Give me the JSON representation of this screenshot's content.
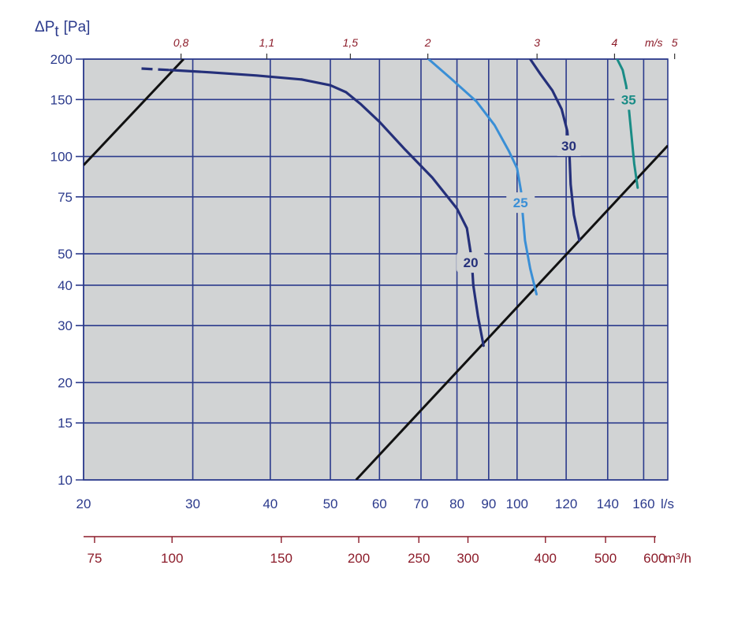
{
  "chart_data": {
    "type": "line",
    "ylabel": "ΔP",
    "ylabel_sub": "t",
    "ylabel_unit": "[Pa]",
    "x_unit": "l/s",
    "x2_unit": "m³/h",
    "top_unit": "m/s",
    "xlim": [
      20,
      175
    ],
    "ylim": [
      10,
      200
    ],
    "x_scale": "log",
    "y_scale": "log",
    "grid": true,
    "plot_bg": "#d1d3d4",
    "grid_color": "#2b3a8c",
    "x_ticks": [
      {
        "v": 20,
        "label": "20"
      },
      {
        "v": 30,
        "label": "30"
      },
      {
        "v": 40,
        "label": "40"
      },
      {
        "v": 50,
        "label": "50"
      },
      {
        "v": 60,
        "label": "60"
      },
      {
        "v": 70,
        "label": "70"
      },
      {
        "v": 80,
        "label": "80"
      },
      {
        "v": 90,
        "label": "90"
      },
      {
        "v": 100,
        "label": "100"
      },
      {
        "v": 120,
        "label": "120"
      },
      {
        "v": 140,
        "label": "140"
      },
      {
        "v": 160,
        "label": "160"
      }
    ],
    "y_ticks": [
      {
        "v": 10,
        "label": "10"
      },
      {
        "v": 15,
        "label": "15"
      },
      {
        "v": 20,
        "label": "20"
      },
      {
        "v": 30,
        "label": "30"
      },
      {
        "v": 40,
        "label": "40"
      },
      {
        "v": 50,
        "label": "50"
      },
      {
        "v": 75,
        "label": "75"
      },
      {
        "v": 100,
        "label": "100"
      },
      {
        "v": 150,
        "label": "150"
      },
      {
        "v": 200,
        "label": "200"
      }
    ],
    "x2_ticks": [
      {
        "v": 75,
        "label": "75"
      },
      {
        "v": 100,
        "label": "100"
      },
      {
        "v": 150,
        "label": "150"
      },
      {
        "v": 200,
        "label": "200"
      },
      {
        "v": 250,
        "label": "250"
      },
      {
        "v": 300,
        "label": "300"
      },
      {
        "v": 400,
        "label": "400"
      },
      {
        "v": 500,
        "label": "500"
      },
      {
        "v": 600,
        "label": "600"
      }
    ],
    "top_ticks": [
      {
        "v": 0.8,
        "label": "0,8"
      },
      {
        "v": 1.1,
        "label": "1,1"
      },
      {
        "v": 1.5,
        "label": "1,5"
      },
      {
        "v": 2,
        "label": "2"
      },
      {
        "v": 3,
        "label": "3"
      },
      {
        "v": 4,
        "label": "4"
      },
      {
        "v": 5,
        "label": "5"
      }
    ],
    "top_axis_ls_per_ms": 35.9,
    "series": [
      {
        "name": "20",
        "color": "#25307a",
        "width": 3.2,
        "dashed_points": [
          [
            24.8,
            187
          ],
          [
            27.6,
            185
          ]
        ],
        "points": [
          [
            27.6,
            185
          ],
          [
            32,
            182
          ],
          [
            38,
            178
          ],
          [
            45,
            173
          ],
          [
            50,
            166
          ],
          [
            53,
            158
          ],
          [
            56,
            145
          ],
          [
            60,
            128
          ],
          [
            66,
            105
          ],
          [
            73,
            86
          ],
          [
            80,
            69
          ],
          [
            83,
            60
          ],
          [
            84.5,
            48
          ],
          [
            85,
            40
          ],
          [
            86.5,
            32
          ],
          [
            88.3,
            26
          ]
        ],
        "label_at": [
          84.2,
          47
        ]
      },
      {
        "name": "25",
        "color": "#3a8fd6",
        "width": 3,
        "points": [
          [
            72,
            200
          ],
          [
            78,
            175
          ],
          [
            86,
            148
          ],
          [
            92,
            125
          ],
          [
            97,
            104
          ],
          [
            100,
            92
          ],
          [
            101.5,
            78
          ],
          [
            102,
            68
          ],
          [
            103,
            55
          ],
          [
            105,
            45
          ],
          [
            107.5,
            37.5
          ]
        ],
        "label_at": [
          101.3,
          72
        ]
      },
      {
        "name": "30",
        "color": "#25307a",
        "width": 3.2,
        "points": [
          [
            105,
            200
          ],
          [
            109,
            180
          ],
          [
            114,
            160
          ],
          [
            118,
            140
          ],
          [
            120.5,
            120
          ],
          [
            121.5,
            100
          ],
          [
            122,
            82
          ],
          [
            123.5,
            66
          ],
          [
            126,
            55
          ]
        ],
        "label_at": [
          121.2,
          108
        ]
      },
      {
        "name": "35",
        "color": "#1a8c86",
        "width": 3,
        "points": [
          [
            145,
            200
          ],
          [
            148,
            185
          ],
          [
            150,
            165
          ],
          [
            151.5,
            140
          ],
          [
            153,
            115
          ],
          [
            154.5,
            95
          ],
          [
            156.5,
            80
          ]
        ],
        "label_at": [
          151.3,
          150
        ]
      }
    ],
    "system_lines": [
      {
        "color": "#111111",
        "points": [
          [
            20,
            94
          ],
          [
            29,
            200
          ]
        ]
      },
      {
        "color": "#111111",
        "points": [
          [
            55,
            10
          ],
          [
            175,
            108
          ]
        ]
      }
    ]
  }
}
